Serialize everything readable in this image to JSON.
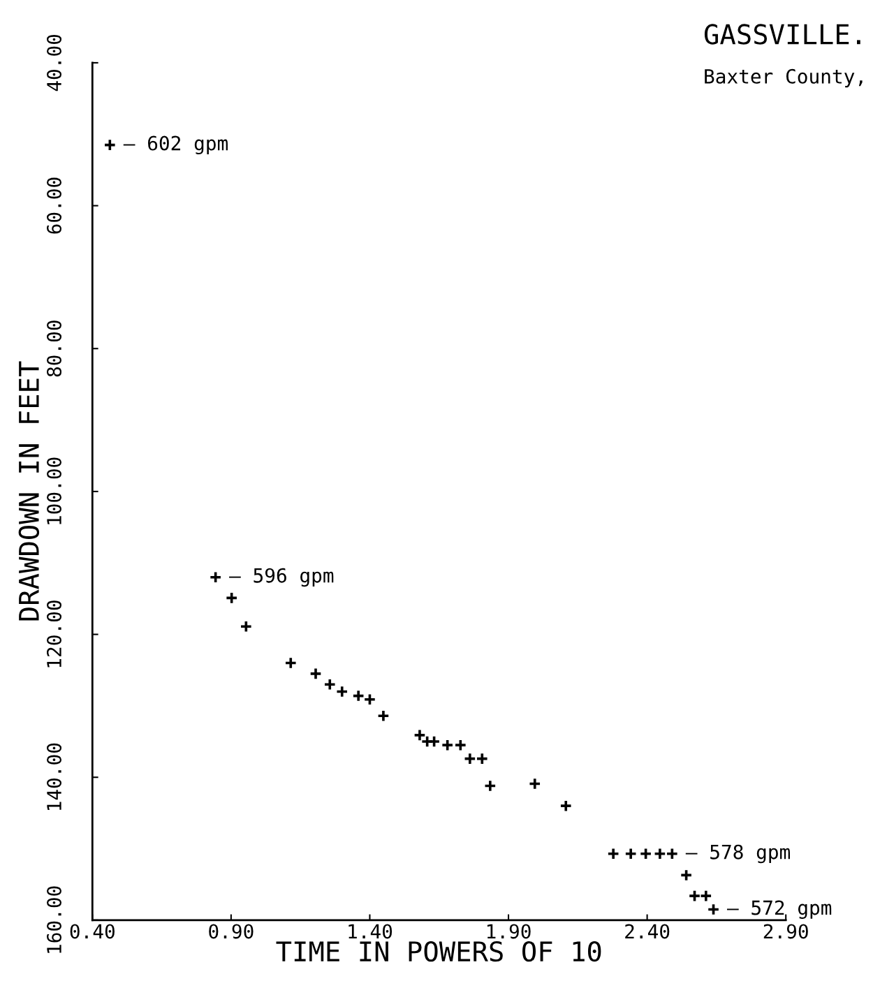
{
  "chart_data": {
    "type": "scatter",
    "title": "GASSVILLE.",
    "subtitle": "Baxter County,",
    "xlabel": "TIME IN POWERS OF 10",
    "ylabel": "DRAWDOWN IN FEET",
    "x": [
      0.463,
      0.844,
      0.902,
      0.954,
      1.115,
      1.205,
      1.256,
      1.3,
      1.359,
      1.4,
      1.449,
      1.58,
      1.607,
      1.632,
      1.68,
      1.727,
      1.761,
      1.805,
      1.834,
      1.995,
      2.107,
      2.278,
      2.341,
      2.395,
      2.446,
      2.49,
      2.541,
      2.571,
      2.612,
      2.639
    ],
    "series": [
      {
        "color": "#000000",
        "values": [
          51.5,
          112.0,
          114.9,
          118.9,
          124.0,
          125.5,
          127.0,
          128.0,
          128.6,
          129.1,
          131.4,
          134.1,
          135.0,
          135.0,
          135.5,
          135.5,
          137.4,
          137.4,
          141.2,
          140.9,
          144.0,
          150.7,
          150.7,
          150.7,
          150.7,
          150.7,
          153.7,
          156.6,
          156.6,
          158.5
        ]
      }
    ],
    "xlim": [
      0.4,
      2.9
    ],
    "ylim": [
      160,
      40
    ],
    "xticks": [
      {
        "value": 0.4,
        "label": "0.40"
      },
      {
        "value": 0.9,
        "label": "0.90"
      },
      {
        "value": 1.4,
        "label": "1.40"
      },
      {
        "value": 1.9,
        "label": "1.90"
      },
      {
        "value": 2.4,
        "label": "2.40"
      },
      {
        "value": 2.9,
        "label": "2.90"
      }
    ],
    "yticks": [
      {
        "value": 40,
        "label": "40.00"
      },
      {
        "value": 60,
        "label": "60.00"
      },
      {
        "value": 80,
        "label": "80.00"
      },
      {
        "value": 100,
        "label": "100.00"
      },
      {
        "value": 120,
        "label": "120.00"
      },
      {
        "value": 140,
        "label": "140.00"
      },
      {
        "value": 160,
        "label": "160.00"
      }
    ],
    "annotations": [
      {
        "text": "— 602 gpm",
        "x": 0.463,
        "y": 51.5
      },
      {
        "text": "— 596 gpm",
        "x": 0.844,
        "y": 112.0
      },
      {
        "text": "— 578 gpm",
        "x": 2.49,
        "y": 150.7
      },
      {
        "text": "— 572 gpm",
        "x": 2.639,
        "y": 158.5
      }
    ],
    "marker": "cross",
    "grid": false
  }
}
